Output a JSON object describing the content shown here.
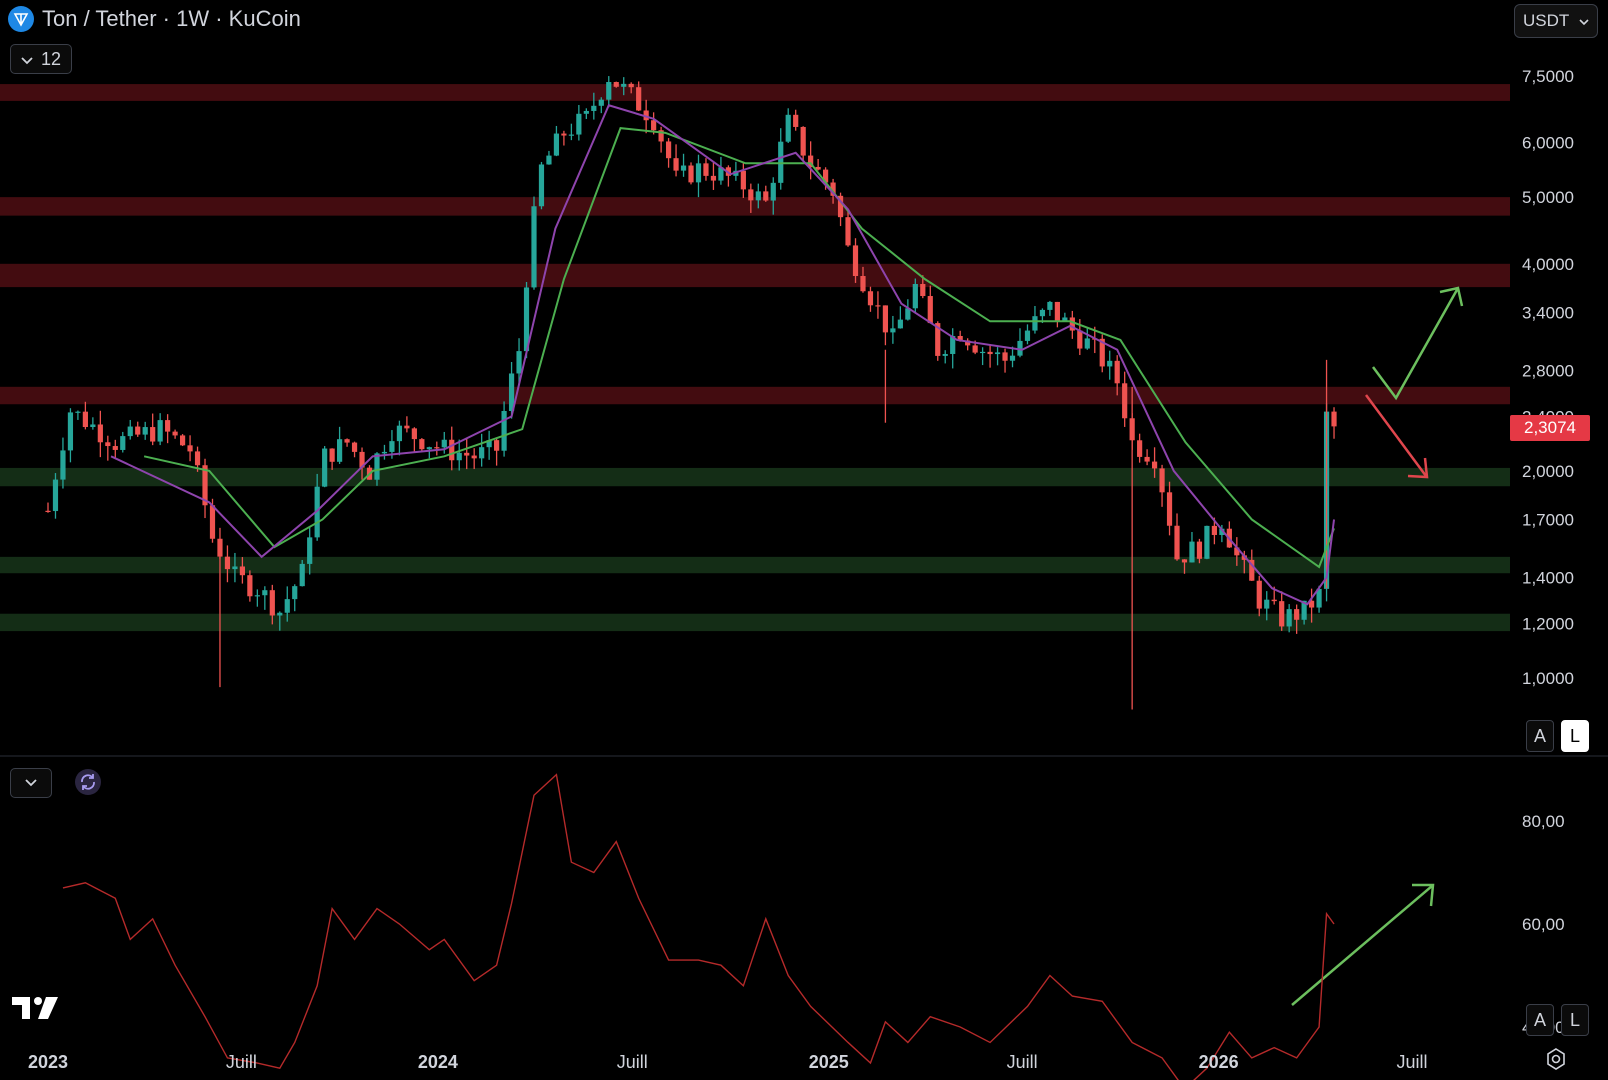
{
  "header": {
    "title": "Ton / Tether · 1W · KuCoin",
    "collapse_count": "12",
    "currency": "USDT"
  },
  "scale_buttons": {
    "auto": "A",
    "log": "L"
  },
  "colors": {
    "up": "#26a69a",
    "down": "#ef5350",
    "ema_fast": "#8e44ad",
    "ema_slow": "#4caf50",
    "resistance": "#5a1016",
    "support": "#17351a",
    "rsi": "#b52a2a",
    "arrow_up": "#6cbf5e",
    "arrow_down": "#e0464d"
  },
  "icons": [
    "ton-logo-icon",
    "chevron-down-icon",
    "refresh-icon",
    "tradingview-logo-icon",
    "settings-icon"
  ],
  "chart_data": [
    {
      "type": "candlestick",
      "title": "Ton / Tether · 1W · KuCoin",
      "scale": "log",
      "ylim": [
        0.9,
        8.5
      ],
      "y_ticks": [
        "7,5000",
        "6,0000",
        "5,0000",
        "4,0000",
        "3,4000",
        "2,8000",
        "2,4000",
        "2,0000",
        "1,7000",
        "1,4000",
        "1,2000",
        "1,0000"
      ],
      "y_tick_values": [
        7.5,
        6.0,
        5.0,
        4.0,
        3.4,
        2.8,
        2.4,
        2.0,
        1.7,
        1.4,
        1.2,
        1.0
      ],
      "x_ticks": [
        "2023",
        "Juill",
        "2024",
        "Juill",
        "2025",
        "Juill",
        "2026",
        "Juill"
      ],
      "x_tick_dates": [
        "2023-01-01",
        "2023-07-01",
        "2024-01-01",
        "2024-07-01",
        "2025-01-01",
        "2025-07-01",
        "2026-01-01",
        "2026-07-01"
      ],
      "last_price": "2,3074",
      "resistance_zones": [
        [
          6.9,
          7.3
        ],
        [
          4.7,
          5.0
        ],
        [
          3.7,
          4.0
        ],
        [
          2.5,
          2.65
        ]
      ],
      "support_zones": [
        [
          1.9,
          2.02
        ],
        [
          1.42,
          1.5
        ],
        [
          1.17,
          1.24
        ]
      ],
      "price_path": [
        [
          "2023-01-01",
          1.75
        ],
        [
          "2023-01-22",
          2.45
        ],
        [
          "2023-03-05",
          2.2
        ],
        [
          "2023-04-16",
          2.3
        ],
        [
          "2023-05-14",
          2.15
        ],
        [
          "2023-06-04",
          1.6
        ],
        [
          "2023-06-25",
          1.4
        ],
        [
          "2023-07-16",
          1.35
        ],
        [
          "2023-08-06",
          1.25
        ],
        [
          "2023-08-27",
          1.42
        ],
        [
          "2023-09-17",
          2.1
        ],
        [
          "2023-10-08",
          2.2
        ],
        [
          "2023-10-29",
          2.0
        ],
        [
          "2023-11-19",
          2.3
        ],
        [
          "2023-12-10",
          2.25
        ],
        [
          "2024-01-07",
          2.15
        ],
        [
          "2024-02-04",
          2.1
        ],
        [
          "2024-02-25",
          2.15
        ],
        [
          "2024-03-17",
          3.0
        ],
        [
          "2024-04-07",
          5.5
        ],
        [
          "2024-04-28",
          6.2
        ],
        [
          "2024-05-19",
          6.5
        ],
        [
          "2024-06-09",
          7.5
        ],
        [
          "2024-06-30",
          7.0
        ],
        [
          "2024-07-21",
          6.5
        ],
        [
          "2024-08-11",
          5.3
        ],
        [
          "2024-09-01",
          5.5
        ],
        [
          "2024-09-22",
          5.4
        ],
        [
          "2024-10-13",
          5.2
        ],
        [
          "2024-11-03",
          4.9
        ],
        [
          "2024-11-24",
          6.4
        ],
        [
          "2024-12-15",
          5.6
        ],
        [
          "2025-01-05",
          5.1
        ],
        [
          "2025-01-19",
          4.2
        ],
        [
          "2025-02-09",
          3.6
        ],
        [
          "2025-03-02",
          3.1
        ],
        [
          "2025-03-23",
          3.7
        ],
        [
          "2025-04-13",
          3.0
        ],
        [
          "2025-05-04",
          3.2
        ],
        [
          "2025-05-25",
          3.0
        ],
        [
          "2025-06-15",
          2.9
        ],
        [
          "2025-07-06",
          3.2
        ],
        [
          "2025-07-27",
          3.45
        ],
        [
          "2025-08-17",
          3.2
        ],
        [
          "2025-09-07",
          3.0
        ],
        [
          "2025-09-28",
          2.7
        ],
        [
          "2025-10-12",
          2.2
        ],
        [
          "2025-11-02",
          2.1
        ],
        [
          "2025-11-23",
          1.5
        ],
        [
          "2025-12-14",
          1.55
        ],
        [
          "2026-01-04",
          1.7
        ],
        [
          "2026-01-18",
          1.5
        ],
        [
          "2026-02-08",
          1.3
        ],
        [
          "2026-03-01",
          1.22
        ],
        [
          "2026-03-22",
          1.25
        ],
        [
          "2026-04-05",
          1.32
        ],
        [
          "2026-04-12",
          2.4
        ],
        [
          "2026-04-19",
          2.31
        ]
      ],
      "ema_fast_path": [
        [
          "2023-03-01",
          2.1
        ],
        [
          "2023-06-01",
          1.8
        ],
        [
          "2023-07-20",
          1.5
        ],
        [
          "2023-09-10",
          1.75
        ],
        [
          "2023-11-01",
          2.1
        ],
        [
          "2024-01-07",
          2.15
        ],
        [
          "2024-03-10",
          2.4
        ],
        [
          "2024-04-20",
          4.5
        ],
        [
          "2024-06-09",
          6.8
        ],
        [
          "2024-07-21",
          6.5
        ],
        [
          "2024-10-01",
          5.4
        ],
        [
          "2024-12-01",
          5.8
        ],
        [
          "2025-01-19",
          4.8
        ],
        [
          "2025-03-10",
          3.5
        ],
        [
          "2025-05-01",
          3.1
        ],
        [
          "2025-07-01",
          3.0
        ],
        [
          "2025-08-15",
          3.25
        ],
        [
          "2025-09-28",
          3.0
        ],
        [
          "2025-11-20",
          2.0
        ],
        [
          "2026-01-10",
          1.6
        ],
        [
          "2026-02-20",
          1.35
        ],
        [
          "2026-03-25",
          1.28
        ],
        [
          "2026-04-12",
          1.4
        ],
        [
          "2026-04-19",
          1.7
        ]
      ],
      "ema_slow_path": [
        [
          "2023-04-01",
          2.1
        ],
        [
          "2023-06-01",
          2.0
        ],
        [
          "2023-08-01",
          1.55
        ],
        [
          "2023-09-15",
          1.7
        ],
        [
          "2023-11-01",
          2.0
        ],
        [
          "2024-01-07",
          2.1
        ],
        [
          "2024-03-20",
          2.3
        ],
        [
          "2024-04-28",
          3.8
        ],
        [
          "2024-06-20",
          6.3
        ],
        [
          "2024-08-01",
          6.2
        ],
        [
          "2024-10-15",
          5.6
        ],
        [
          "2024-12-15",
          5.6
        ],
        [
          "2025-02-01",
          4.5
        ],
        [
          "2025-04-01",
          3.8
        ],
        [
          "2025-06-01",
          3.3
        ],
        [
          "2025-08-15",
          3.3
        ],
        [
          "2025-10-01",
          3.1
        ],
        [
          "2025-12-01",
          2.2
        ],
        [
          "2026-02-01",
          1.7
        ],
        [
          "2026-04-05",
          1.45
        ],
        [
          "2026-04-19",
          1.65
        ]
      ]
    },
    {
      "type": "line",
      "scale": "linear",
      "ylim": [
        25,
        100
      ],
      "y_ticks": [
        "80,00",
        "60,00",
        "40,00"
      ],
      "y_tick_values": [
        80,
        60,
        40
      ],
      "points": [
        [
          "2023-01-15",
          67
        ],
        [
          "2023-02-05",
          68
        ],
        [
          "2023-03-05",
          65
        ],
        [
          "2023-03-19",
          57
        ],
        [
          "2023-04-09",
          61
        ],
        [
          "2023-04-30",
          52
        ],
        [
          "2023-05-28",
          42
        ],
        [
          "2023-06-18",
          34
        ],
        [
          "2023-07-16",
          33
        ],
        [
          "2023-08-06",
          32
        ],
        [
          "2023-08-20",
          37
        ],
        [
          "2023-09-10",
          48
        ],
        [
          "2023-09-24",
          63
        ],
        [
          "2023-10-15",
          57
        ],
        [
          "2023-11-05",
          63
        ],
        [
          "2023-11-26",
          60
        ],
        [
          "2023-12-24",
          55
        ],
        [
          "2024-01-07",
          57
        ],
        [
          "2024-02-04",
          49
        ],
        [
          "2024-02-25",
          52
        ],
        [
          "2024-03-10",
          64
        ],
        [
          "2024-03-31",
          85
        ],
        [
          "2024-04-21",
          89
        ],
        [
          "2024-05-05",
          72
        ],
        [
          "2024-05-26",
          70
        ],
        [
          "2024-06-16",
          76
        ],
        [
          "2024-07-07",
          65
        ],
        [
          "2024-08-04",
          53
        ],
        [
          "2024-09-01",
          53
        ],
        [
          "2024-09-22",
          52
        ],
        [
          "2024-10-13",
          48
        ],
        [
          "2024-11-03",
          61
        ],
        [
          "2024-11-24",
          50
        ],
        [
          "2024-12-15",
          44
        ],
        [
          "2025-01-19",
          37
        ],
        [
          "2025-02-09",
          33
        ],
        [
          "2025-02-23",
          41
        ],
        [
          "2025-03-16",
          37
        ],
        [
          "2025-04-06",
          42
        ],
        [
          "2025-05-04",
          40
        ],
        [
          "2025-06-01",
          37
        ],
        [
          "2025-07-06",
          44
        ],
        [
          "2025-07-27",
          50
        ],
        [
          "2025-08-17",
          46
        ],
        [
          "2025-09-14",
          45
        ],
        [
          "2025-10-12",
          37
        ],
        [
          "2025-11-09",
          34
        ],
        [
          "2025-11-30",
          28
        ],
        [
          "2025-12-21",
          32
        ],
        [
          "2026-01-11",
          39
        ],
        [
          "2026-02-01",
          34
        ],
        [
          "2026-02-22",
          36
        ],
        [
          "2026-03-15",
          34
        ],
        [
          "2026-04-05",
          40
        ],
        [
          "2026-04-12",
          62
        ],
        [
          "2026-04-19",
          60
        ]
      ]
    }
  ]
}
